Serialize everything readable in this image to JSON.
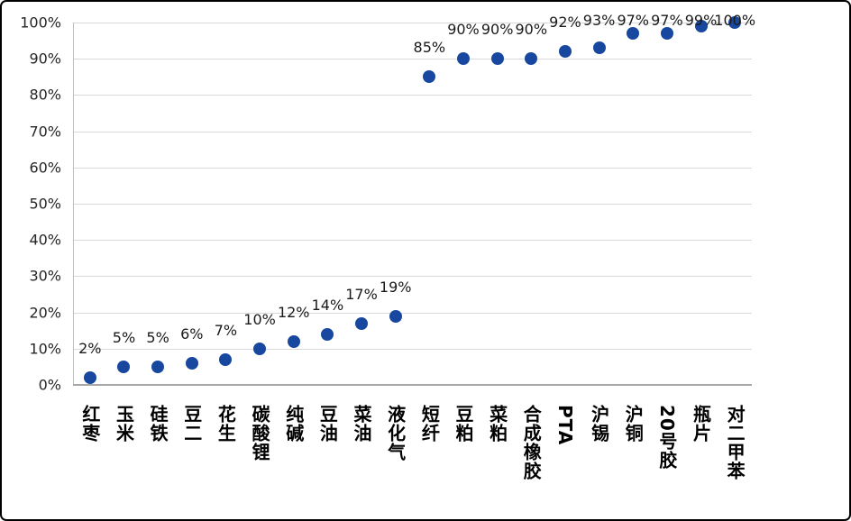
{
  "chart_data": {
    "type": "scatter",
    "title": "",
    "xlabel": "",
    "ylabel": "",
    "categories": [
      "红枣",
      "玉米",
      "硅铁",
      "豆二",
      "花生",
      "碳酸锂",
      "纯碱",
      "豆油",
      "菜油",
      "液化气",
      "短纤",
      "豆粕",
      "菜粕",
      "合成橡胶",
      "PTA",
      "沪锡",
      "沪铜",
      "20号胶",
      "瓶片",
      "对二甲苯"
    ],
    "values": [
      2,
      5,
      5,
      6,
      7,
      10,
      12,
      14,
      17,
      19,
      85,
      90,
      90,
      90,
      92,
      93,
      97,
      97,
      99,
      100
    ],
    "point_labels": [
      "2%",
      "5%",
      "5%",
      "6%",
      "7%",
      "10%",
      "12%",
      "14%",
      "17%",
      "19%",
      "85%",
      "90%",
      "90%",
      "90%",
      "92%",
      "93%",
      "97%",
      "97%",
      "99%",
      "100%"
    ],
    "y_ticks": [
      "0%",
      "10%",
      "20%",
      "30%",
      "40%",
      "50%",
      "60%",
      "70%",
      "80%",
      "90%",
      "100%"
    ],
    "ylim": [
      0,
      100
    ],
    "grid": true,
    "legend": "none",
    "colors": {
      "marker": "#17479E",
      "gridline": "#D9D9D9",
      "axis": "#A6A6A6",
      "axis_left": "#BFBFBF",
      "label_text": "#1A1A1A",
      "tick_text": "#262626",
      "category_text": "#000000",
      "frame_border": "#000000",
      "background": "#FFFFFF"
    }
  }
}
